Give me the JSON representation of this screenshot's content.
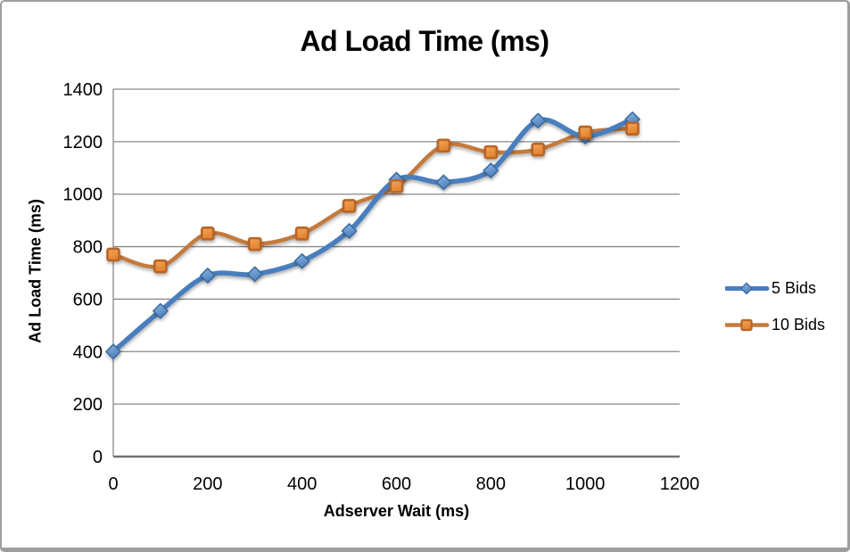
{
  "window": {
    "background": "#FFFFFF",
    "frame_border_color": "#9E9E9E"
  },
  "chart_data": {
    "type": "line",
    "title": "Ad Load Time (ms)",
    "xlabel": "Adserver Wait (ms)",
    "ylabel": "Ad Load Time (ms)",
    "x": [
      0,
      100,
      200,
      300,
      400,
      500,
      600,
      700,
      800,
      900,
      1000,
      1100
    ],
    "series": [
      {
        "name": "5 Bids",
        "marker": "diamond",
        "line_color": "#4A7EBE",
        "marker_gradient": [
          "#8FB6E4",
          "#4F81BD"
        ],
        "marker_edge": "#3B6CA0",
        "values": [
          400,
          555,
          690,
          695,
          745,
          860,
          1055,
          1045,
          1090,
          1280,
          1220,
          1285
        ]
      },
      {
        "name": "10 Bids",
        "marker": "square",
        "line_color": "#C47A3D",
        "marker_gradient": [
          "#F4A55B",
          "#E2842E"
        ],
        "marker_edge": "#B96526",
        "values": [
          770,
          725,
          850,
          810,
          850,
          955,
          1030,
          1185,
          1160,
          1170,
          1235,
          1250
        ]
      }
    ],
    "xlim": [
      0,
      1200
    ],
    "ylim": [
      0,
      1400
    ],
    "x_ticks": [
      0,
      200,
      400,
      600,
      800,
      1000,
      1200
    ],
    "y_ticks": [
      0,
      200,
      400,
      600,
      800,
      1000,
      1200,
      1400
    ],
    "grid": "horizontal",
    "gridline_color": "#898989",
    "axis_color": "#707070",
    "legend_position": "right",
    "smoothed_lines": true
  }
}
